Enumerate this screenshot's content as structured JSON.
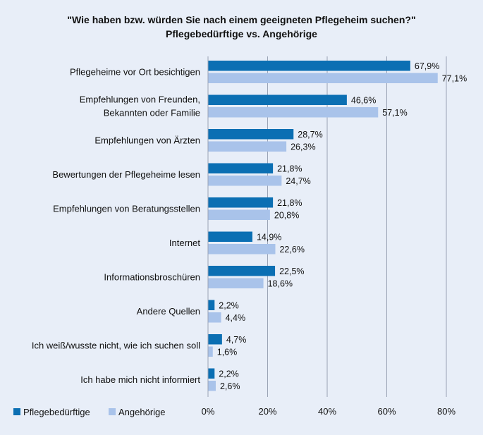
{
  "chart_data": {
    "type": "bar",
    "orientation": "horizontal",
    "title": "\"Wie haben bzw. würden Sie nach einem geeigneten Pflegeheim suchen?\"",
    "subtitle": "Pflegebedürftige vs. Angehörige",
    "categories": [
      [
        "Pflegeheime vor Ort besichtigen"
      ],
      [
        "Empfehlungen von Freunden,",
        "Bekannten oder Familie"
      ],
      [
        "Empfehlungen von Ärzten"
      ],
      [
        "Bewertungen der Pflegeheime lesen"
      ],
      [
        "Empfehlungen von Beratungsstellen"
      ],
      [
        "Internet"
      ],
      [
        "Informationsbroschüren"
      ],
      [
        "Andere Quellen"
      ],
      [
        "Ich weiß/wusste nicht, wie ich suchen soll"
      ],
      [
        "Ich habe mich nicht informiert"
      ]
    ],
    "series": [
      {
        "name": "Pflegebedürftige",
        "color": "#0b6fb3",
        "values": [
          67.9,
          46.6,
          28.7,
          21.8,
          21.8,
          14.9,
          22.5,
          2.2,
          4.7,
          2.2
        ],
        "labels": [
          "67,9%",
          "46,6%",
          "28,7%",
          "21,8%",
          "21,8%",
          "14,9%",
          "22,5%",
          "2,2%",
          "4,7%",
          "2,2%"
        ]
      },
      {
        "name": "Angehörige",
        "color": "#a9c3ea",
        "values": [
          77.1,
          57.1,
          26.3,
          24.7,
          20.8,
          22.6,
          18.6,
          4.4,
          1.6,
          2.6
        ],
        "labels": [
          "77,1%",
          "57,1%",
          "26,3%",
          "24,7%",
          "20,8%",
          "22,6%",
          "18,6%",
          "4,4%",
          "1,6%",
          "2,6%"
        ]
      }
    ],
    "xlim": [
      0,
      80
    ],
    "xticks": [
      0,
      20,
      40,
      60,
      80
    ],
    "xtick_labels": [
      "0%",
      "20%",
      "40%",
      "60%",
      "80%"
    ],
    "xlabel": "",
    "ylabel": "",
    "grid": true,
    "legend_position": "bottom-left"
  },
  "colors": {
    "background": "#e8eef8",
    "gridline": "#9aa3b5"
  }
}
